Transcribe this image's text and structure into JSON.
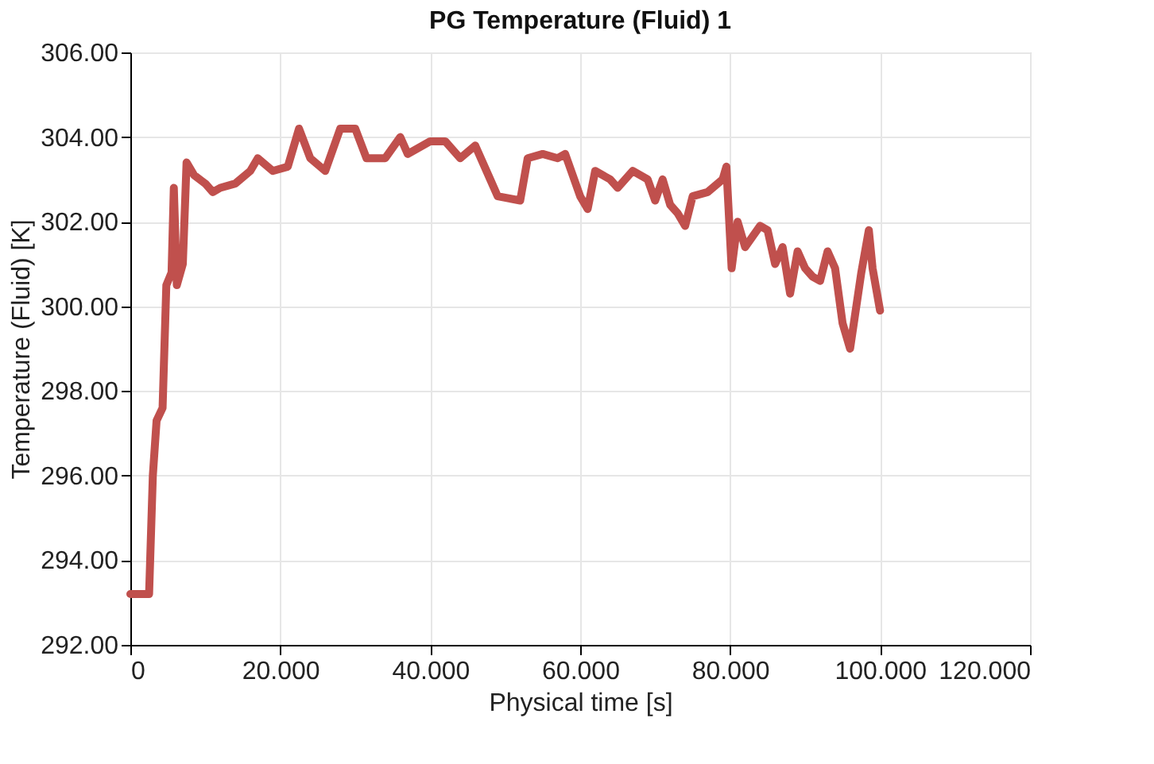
{
  "chart_data": {
    "type": "line",
    "title": "PG Temperature (Fluid) 1",
    "xlabel": "Physical time [s]",
    "ylabel": "Temperature (Fluid) [K]",
    "xlim": [
      0,
      120
    ],
    "xticks": [
      0,
      {
        "value": 20,
        "label": "20.000"
      },
      {
        "value": 40,
        "label": "40.000"
      },
      {
        "value": 60,
        "label": "60.000"
      },
      {
        "value": 80,
        "label": "80.000"
      },
      {
        "value": 100,
        "label": "100.000"
      },
      {
        "value": 120,
        "label": "120.000"
      }
    ],
    "ylim": [
      292,
      306
    ],
    "yticks": [
      {
        "value": 292,
        "label": "292.00"
      },
      {
        "value": 294,
        "label": "294.00"
      },
      {
        "value": 296,
        "label": "296.00"
      },
      {
        "value": 298,
        "label": "298.00"
      },
      {
        "value": 300,
        "label": "300.00"
      },
      {
        "value": 302,
        "label": "302.00"
      },
      {
        "value": 304,
        "label": "304.00"
      },
      {
        "value": 306,
        "label": "306.00"
      }
    ],
    "grid": true,
    "marker": "none",
    "line_style": "solid",
    "x": [
      0,
      2.5,
      3,
      3.5,
      4.3,
      4.8,
      5.5,
      5.8,
      6.2,
      7,
      7.5,
      8.5,
      10,
      11,
      12,
      14,
      16,
      17,
      19,
      21,
      22.5,
      24,
      26,
      28,
      30,
      31.5,
      34,
      36,
      37,
      40,
      42,
      44,
      46,
      48,
      49,
      52,
      53,
      55,
      57,
      58,
      60,
      61,
      62,
      64,
      65,
      67,
      69,
      70,
      71,
      72,
      73,
      74,
      75,
      77,
      79,
      79.5,
      80.2,
      81,
      82,
      84,
      85,
      86,
      87,
      88,
      89,
      90,
      91,
      92,
      93,
      94,
      95,
      96,
      97.5,
      98.5,
      99,
      100
    ],
    "series": [
      {
        "color": "#c0504d",
        "values": [
          293.2,
          293.2,
          296.0,
          297.3,
          297.6,
          300.5,
          300.8,
          302.8,
          300.5,
          301.0,
          303.4,
          303.1,
          302.9,
          302.7,
          302.8,
          302.9,
          303.2,
          303.5,
          303.2,
          303.3,
          304.2,
          303.5,
          303.2,
          304.2,
          304.2,
          303.5,
          303.5,
          304.0,
          303.6,
          303.9,
          303.9,
          303.5,
          303.8,
          303.0,
          302.6,
          302.5,
          303.5,
          303.6,
          303.5,
          303.6,
          302.6,
          302.3,
          303.2,
          303.0,
          302.8,
          303.2,
          303.0,
          302.5,
          303.0,
          302.4,
          302.2,
          301.9,
          302.6,
          302.7,
          303.0,
          303.3,
          300.9,
          302.0,
          301.4,
          301.9,
          301.8,
          301.0,
          301.4,
          300.3,
          301.3,
          300.9,
          300.7,
          300.6,
          301.3,
          300.9,
          299.6,
          299.0,
          300.8,
          301.8,
          300.9,
          299.9
        ]
      }
    ]
  }
}
